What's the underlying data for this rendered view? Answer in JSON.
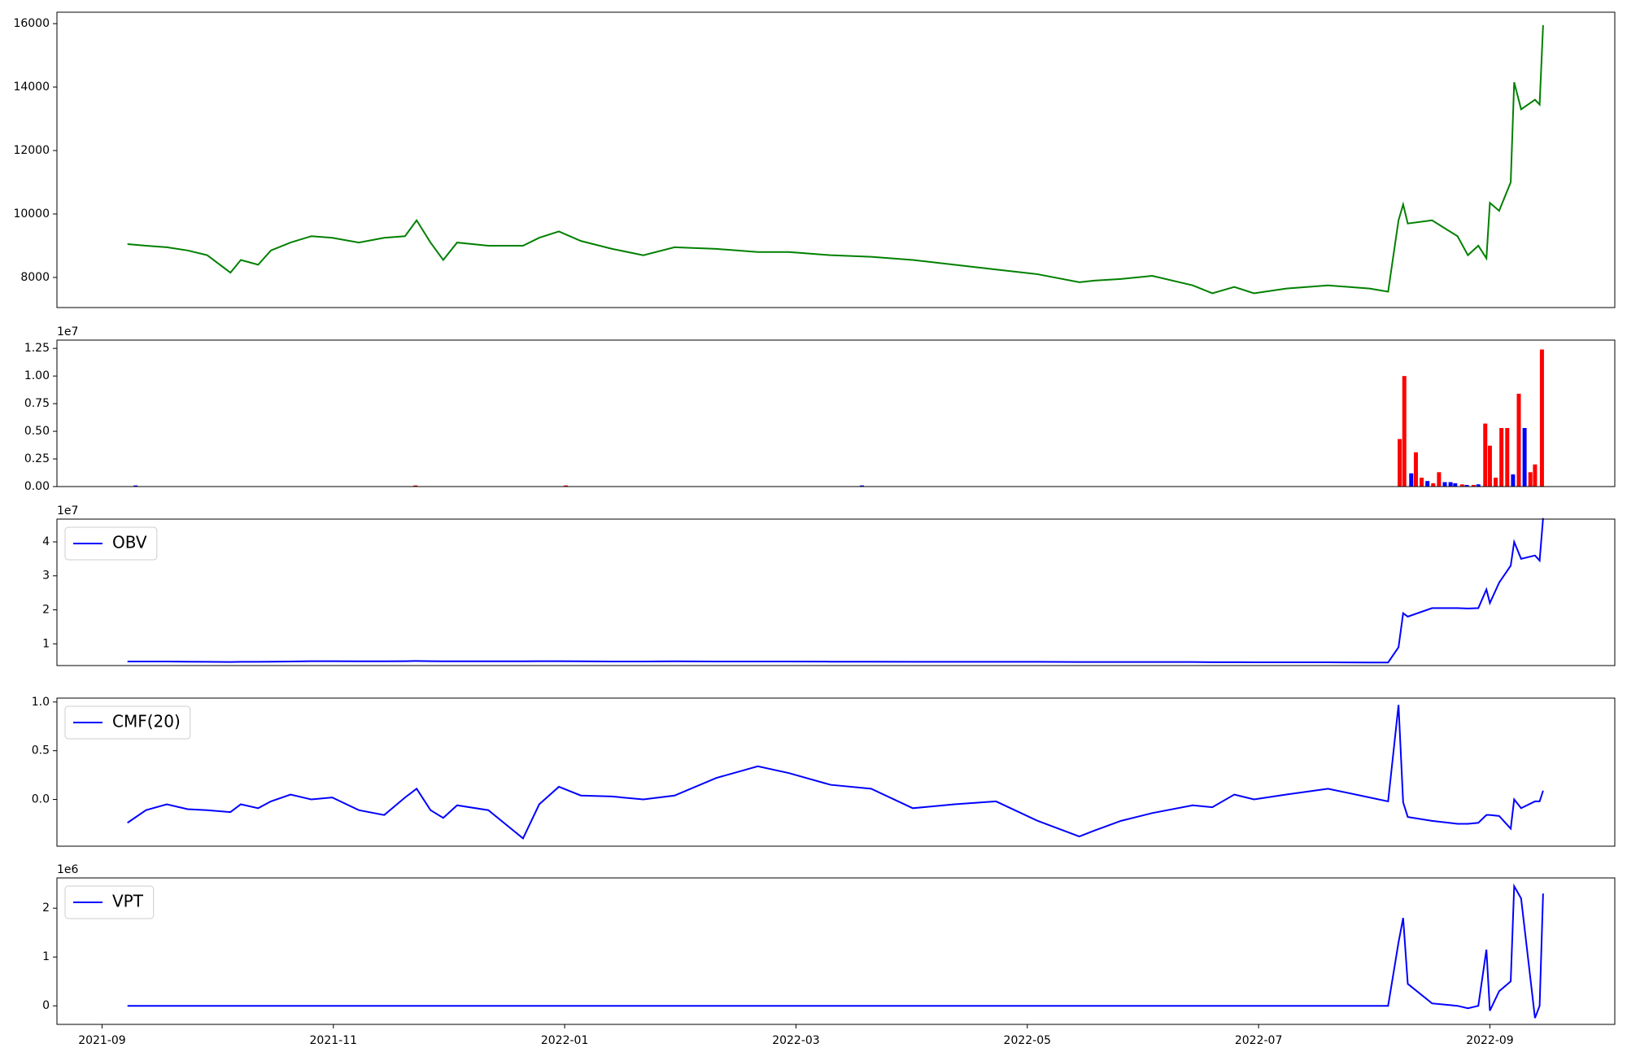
{
  "chart_data": [
    {
      "type": "line",
      "color": "green",
      "x": [
        0.22,
        0.38,
        0.56,
        0.74,
        0.91,
        1.11,
        1.2,
        1.35,
        1.46,
        1.63,
        1.81,
        1.99,
        2.22,
        2.44,
        2.62,
        2.72,
        2.84,
        2.95,
        3.07,
        3.34,
        3.64,
        3.78,
        3.95,
        4.14,
        4.41,
        4.68,
        4.95,
        5.31,
        5.67,
        5.94,
        6.3,
        6.65,
        7.01,
        7.37,
        7.73,
        8.09,
        8.45,
        8.58,
        8.81,
        9.08,
        9.43,
        9.6,
        9.79,
        9.96,
        10.24,
        10.6,
        10.96,
        11.12,
        11.21,
        11.25,
        11.29,
        11.5,
        11.72,
        11.81,
        11.9,
        11.97,
        12.0,
        12.08,
        12.18,
        12.21,
        12.27,
        12.39,
        12.43,
        12.46
      ],
      "values": [
        9050,
        9000,
        8950,
        8850,
        8700,
        8150,
        8550,
        8400,
        8850,
        9100,
        9300,
        9250,
        9100,
        9250,
        9300,
        9800,
        9100,
        8550,
        9100,
        9000,
        9000,
        9250,
        9450,
        9150,
        8900,
        8700,
        8950,
        8900,
        8800,
        8800,
        8700,
        8650,
        8550,
        8400,
        8250,
        8100,
        7850,
        7900,
        7950,
        8050,
        7750,
        7500,
        7700,
        7500,
        7650,
        7750,
        7650,
        7550,
        9800,
        10300,
        9700,
        9800,
        9300,
        8700,
        9000,
        8600,
        10350,
        10100,
        11000,
        14150,
        13300,
        13600,
        13450,
        15950
      ],
      "xlim": [
        -0.39,
        13.08
      ],
      "ylim": [
        7050,
        16360
      ],
      "yticks": [
        8000,
        10000,
        12000,
        14000,
        16000
      ]
    },
    {
      "type": "bar",
      "x": [
        0.29,
        2.71,
        4.01,
        6.57,
        11.22,
        11.26,
        11.32,
        11.36,
        11.41,
        11.46,
        11.51,
        11.56,
        11.61,
        11.66,
        11.7,
        11.76,
        11.8,
        11.86,
        11.9,
        11.96,
        12.0,
        12.05,
        12.1,
        12.15,
        12.2,
        12.25,
        12.3,
        12.35,
        12.39,
        12.45
      ],
      "values": [
        100000,
        100000,
        100000,
        100000,
        4300000,
        10000000,
        1200000,
        3100000,
        800000,
        500000,
        300000,
        1300000,
        400000,
        400000,
        300000,
        200000,
        150000,
        150000,
        200000,
        5700000,
        3700000,
        800000,
        5300000,
        5300000,
        1100000,
        8400000,
        5300000,
        1300000,
        2000000,
        12400000
      ],
      "colors": [
        "blue",
        "red",
        "red",
        "blue",
        "red",
        "red",
        "blue",
        "red",
        "red",
        "blue",
        "red",
        "red",
        "blue",
        "blue",
        "blue",
        "red",
        "blue",
        "red",
        "blue",
        "red",
        "red",
        "red",
        "red",
        "red",
        "blue",
        "red",
        "blue",
        "red",
        "red",
        "red"
      ],
      "xlim": [
        -0.39,
        13.08
      ],
      "ylim": [
        0,
        13250000
      ],
      "y_offset_label": "1e7",
      "yticks": [
        {
          "value": 0,
          "label": "0.00"
        },
        {
          "value": 2500000,
          "label": "0.25"
        },
        {
          "value": 5000000,
          "label": "0.50"
        },
        {
          "value": 7500000,
          "label": "0.75"
        },
        {
          "value": 10000000,
          "label": "1.00"
        },
        {
          "value": 12500000,
          "label": "1.25"
        }
      ]
    },
    {
      "type": "line",
      "legend": "upper left",
      "x": [
        0.22,
        0.38,
        0.56,
        0.74,
        0.91,
        1.11,
        1.2,
        1.35,
        1.46,
        1.63,
        1.81,
        1.99,
        2.22,
        2.44,
        2.62,
        2.72,
        2.84,
        2.95,
        3.07,
        3.34,
        3.64,
        3.78,
        3.95,
        4.14,
        4.41,
        4.68,
        4.95,
        5.31,
        5.67,
        5.94,
        6.3,
        6.65,
        7.01,
        7.37,
        7.73,
        8.09,
        8.45,
        8.58,
        8.81,
        9.08,
        9.43,
        9.6,
        9.79,
        9.96,
        10.24,
        10.6,
        10.96,
        11.12,
        11.21,
        11.25,
        11.29,
        11.5,
        11.72,
        11.81,
        11.9,
        11.97,
        12.0,
        12.08,
        12.18,
        12.21,
        12.27,
        12.39,
        12.43,
        12.46
      ],
      "series": [
        {
          "name": "OBV",
          "color": "blue",
          "values": [
            4800000,
            4800000,
            4800000,
            4750000,
            4700000,
            4650000,
            4700000,
            4700000,
            4750000,
            4800000,
            4900000,
            4900000,
            4850000,
            4850000,
            4900000,
            4950000,
            4900000,
            4850000,
            4850000,
            4850000,
            4850000,
            4900000,
            4900000,
            4850000,
            4800000,
            4800000,
            4850000,
            4800000,
            4800000,
            4800000,
            4750000,
            4750000,
            4700000,
            4700000,
            4700000,
            4700000,
            4650000,
            4650000,
            4650000,
            4650000,
            4650000,
            4600000,
            4600000,
            4550000,
            4550000,
            4550000,
            4500000,
            4500000,
            9000000,
            19000000,
            18000000,
            20500000,
            20500000,
            20400000,
            20500000,
            26000000,
            22000000,
            28000000,
            33000000,
            40000000,
            35000000,
            36000000,
            34500000,
            47000000
          ]
        }
      ],
      "xlim": [
        -0.39,
        13.08
      ],
      "ylim": [
        3600000,
        46700000
      ],
      "y_offset_label": "1e7",
      "yticks": [
        {
          "value": 10000000,
          "label": "1"
        },
        {
          "value": 20000000,
          "label": "2"
        },
        {
          "value": 30000000,
          "label": "3"
        },
        {
          "value": 40000000,
          "label": "4"
        }
      ]
    },
    {
      "type": "line",
      "legend": "upper left",
      "x": [
        0.22,
        0.38,
        0.56,
        0.74,
        0.91,
        1.11,
        1.2,
        1.35,
        1.46,
        1.63,
        1.81,
        1.99,
        2.22,
        2.44,
        2.62,
        2.72,
        2.84,
        2.95,
        3.07,
        3.34,
        3.64,
        3.78,
        3.95,
        4.14,
        4.41,
        4.68,
        4.95,
        5.31,
        5.67,
        5.94,
        6.3,
        6.65,
        7.01,
        7.37,
        7.73,
        8.09,
        8.45,
        8.58,
        8.81,
        9.08,
        9.43,
        9.6,
        9.79,
        9.96,
        10.24,
        10.6,
        10.96,
        11.12,
        11.21,
        11.25,
        11.29,
        11.5,
        11.72,
        11.81,
        11.9,
        11.97,
        12.0,
        12.08,
        12.18,
        12.21,
        12.27,
        12.39,
        12.43,
        12.46
      ],
      "series": [
        {
          "name": "CMF(20)",
          "color": "blue",
          "values": [
            -0.24,
            -0.11,
            -0.05,
            -0.1,
            -0.11,
            -0.13,
            -0.05,
            -0.09,
            -0.02,
            0.05,
            0.0,
            0.02,
            -0.11,
            -0.16,
            0.02,
            0.11,
            -0.11,
            -0.19,
            -0.06,
            -0.11,
            -0.4,
            -0.05,
            0.13,
            0.04,
            0.03,
            0.0,
            0.04,
            0.22,
            0.34,
            0.27,
            0.15,
            0.11,
            -0.09,
            -0.05,
            -0.02,
            -0.22,
            -0.38,
            -0.32,
            -0.22,
            -0.14,
            -0.06,
            -0.08,
            0.05,
            0.0,
            0.05,
            0.11,
            0.02,
            -0.02,
            0.97,
            -0.03,
            -0.18,
            -0.22,
            -0.25,
            -0.25,
            -0.24,
            -0.16,
            -0.16,
            -0.17,
            -0.3,
            0.0,
            -0.09,
            -0.02,
            -0.02,
            0.09
          ]
        }
      ],
      "xlim": [
        -0.39,
        13.08
      ],
      "ylim": [
        -0.48,
        1.04
      ],
      "yticks": [
        {
          "value": 0,
          "label": "0.0"
        },
        {
          "value": 0.5,
          "label": "0.5"
        },
        {
          "value": 1,
          "label": "1.0"
        }
      ]
    },
    {
      "type": "line",
      "legend": "upper left",
      "x": [
        0.22,
        0.38,
        0.56,
        0.74,
        0.91,
        1.11,
        1.2,
        1.35,
        1.46,
        1.63,
        1.81,
        1.99,
        2.22,
        2.44,
        2.62,
        2.72,
        2.84,
        2.95,
        3.07,
        3.34,
        3.64,
        3.78,
        3.95,
        4.14,
        4.41,
        4.68,
        4.95,
        5.31,
        5.67,
        5.94,
        6.3,
        6.65,
        7.01,
        7.37,
        7.73,
        8.09,
        8.45,
        8.58,
        8.81,
        9.08,
        9.43,
        9.6,
        9.79,
        9.96,
        10.24,
        10.6,
        10.96,
        11.12,
        11.21,
        11.25,
        11.29,
        11.5,
        11.72,
        11.81,
        11.9,
        11.97,
        12.0,
        12.08,
        12.18,
        12.21,
        12.27,
        12.39,
        12.43,
        12.46
      ],
      "series": [
        {
          "name": "VPT",
          "color": "blue",
          "values": [
            0,
            0,
            0,
            0,
            0,
            0,
            0,
            0,
            0,
            0,
            0,
            0,
            0,
            0,
            0,
            0,
            0,
            0,
            0,
            0,
            0,
            0,
            0,
            0,
            0,
            0,
            0,
            0,
            0,
            0,
            0,
            0,
            0,
            0,
            0,
            0,
            0,
            0,
            0,
            0,
            0,
            0,
            0,
            0,
            0,
            0,
            0,
            0,
            1300000,
            1800000,
            450000,
            50000,
            0,
            -50000,
            0,
            1150000,
            -100000,
            300000,
            500000,
            2450000,
            2200000,
            -250000,
            0,
            2300000
          ]
        }
      ],
      "xlim": [
        -0.39,
        13.08
      ],
      "ylim": [
        -380000,
        2620000
      ],
      "y_offset_label": "1e6",
      "yticks": [
        {
          "value": 0,
          "label": "0"
        },
        {
          "value": 1000000,
          "label": "1"
        },
        {
          "value": 2000000,
          "label": "2"
        }
      ],
      "xticks": [
        {
          "value": 0,
          "label": "2021-09"
        },
        {
          "value": 2,
          "label": "2021-11"
        },
        {
          "value": 4,
          "label": "2022-01"
        },
        {
          "value": 6,
          "label": "2022-03"
        },
        {
          "value": 8,
          "label": "2022-05"
        },
        {
          "value": 10,
          "label": "2022-07"
        },
        {
          "value": 12,
          "label": "2022-09"
        }
      ]
    }
  ]
}
